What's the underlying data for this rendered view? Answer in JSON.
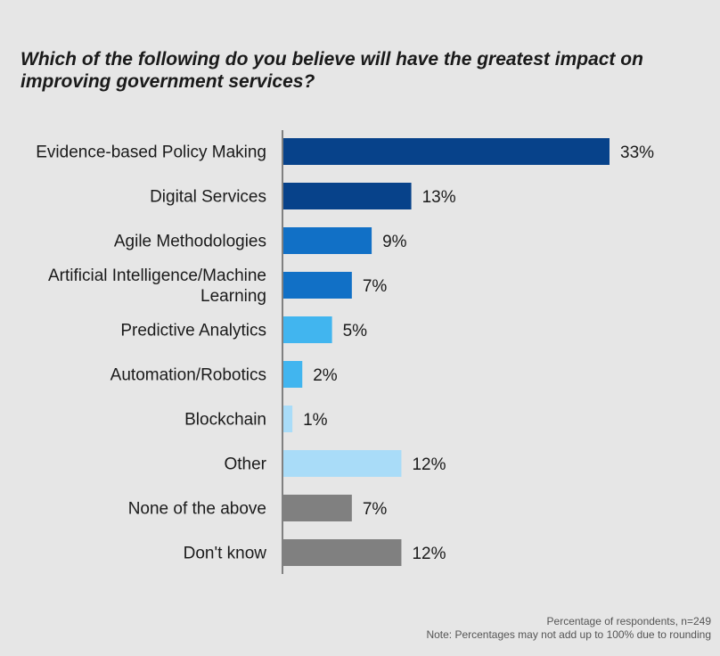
{
  "chart_data": {
    "type": "bar",
    "orientation": "horizontal",
    "title": "Which of the following do you believe will have the greatest impact on improving government services?",
    "categories": [
      [
        "Evidence-based Policy Making"
      ],
      [
        "Digital Services"
      ],
      [
        "Agile Methodologies"
      ],
      [
        "Artificial Intelligence/Machine",
        "Learning"
      ],
      [
        "Predictive Analytics"
      ],
      [
        "Automation/Robotics"
      ],
      [
        "Blockchain"
      ],
      [
        "Other"
      ],
      [
        "None of the above"
      ],
      [
        "Don't know"
      ]
    ],
    "values": [
      33,
      13,
      9,
      7,
      5,
      2,
      1,
      12,
      7,
      12
    ],
    "value_labels": [
      "33%",
      "13%",
      "9%",
      "7%",
      "5%",
      "2%",
      "1%",
      "12%",
      "7%",
      "12%"
    ],
    "colors": [
      "#07428a",
      "#07428a",
      "#1170c6",
      "#1170c6",
      "#41b5ef",
      "#41b5ef",
      "#a9dcf8",
      "#a9dcf8",
      "#808080",
      "#808080"
    ],
    "axis_color": "#808080",
    "xlim": [
      0,
      33
    ],
    "grid": false,
    "legend": "none"
  },
  "footnotes": {
    "line1": "Percentage of respondents, n=249",
    "line2": "Note: Percentages may not add up to 100% due to rounding"
  }
}
